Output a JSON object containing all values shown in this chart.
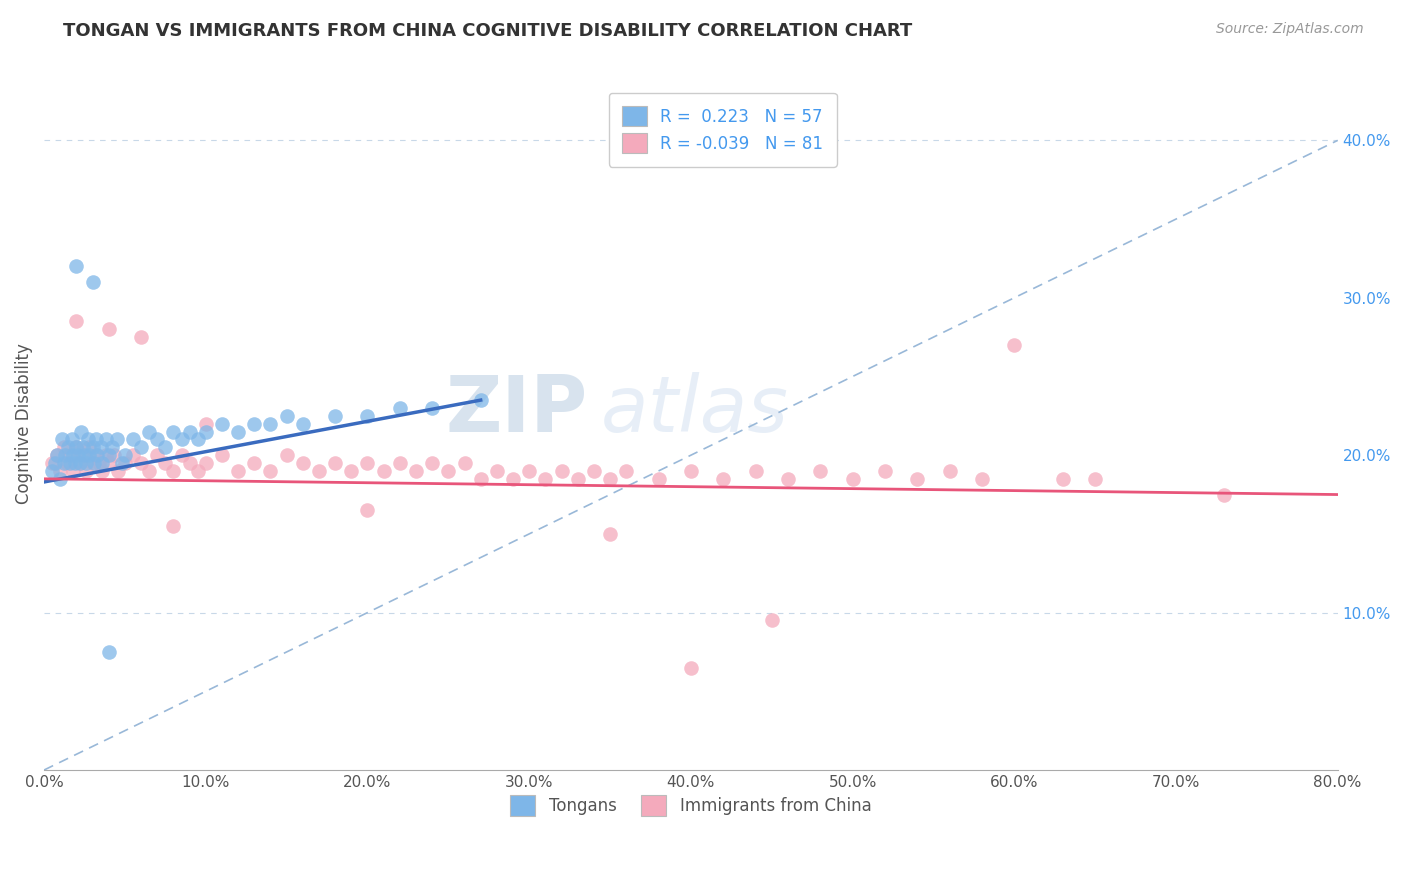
{
  "title": "TONGAN VS IMMIGRANTS FROM CHINA COGNITIVE DISABILITY CORRELATION CHART",
  "source": "Source: ZipAtlas.com",
  "ylabel": "Cognitive Disability",
  "xlim": [
    0.0,
    0.8
  ],
  "ylim": [
    0.0,
    0.44
  ],
  "xticks": [
    0.0,
    0.1,
    0.2,
    0.3,
    0.4,
    0.5,
    0.6,
    0.7,
    0.8
  ],
  "xticklabels": [
    "0.0%",
    "10.0%",
    "20.0%",
    "30.0%",
    "40.0%",
    "50.0%",
    "60.0%",
    "70.0%",
    "80.0%"
  ],
  "yticks_right": [
    0.1,
    0.2,
    0.3,
    0.4
  ],
  "yticklabels_right": [
    "10.0%",
    "20.0%",
    "30.0%",
    "40.0%"
  ],
  "legend_R1": "0.223",
  "legend_N1": "57",
  "legend_R2": "-0.039",
  "legend_N2": "81",
  "color_tongan": "#7EB6E8",
  "color_china": "#F4AABC",
  "color_tongan_line": "#3A6BBF",
  "color_china_line": "#E8557A",
  "color_dashed_line": "#99B8D8",
  "color_gridline": "#C8D8E8",
  "watermark_zip": "ZIP",
  "watermark_atlas": "atlas",
  "background_color": "#FFFFFF",
  "tongan_x": [
    0.005,
    0.007,
    0.008,
    0.01,
    0.011,
    0.012,
    0.013,
    0.015,
    0.016,
    0.017,
    0.018,
    0.019,
    0.02,
    0.021,
    0.022,
    0.023,
    0.024,
    0.025,
    0.026,
    0.027,
    0.028,
    0.03,
    0.031,
    0.032,
    0.033,
    0.035,
    0.036,
    0.038,
    0.04,
    0.042,
    0.045,
    0.048,
    0.05,
    0.055,
    0.06,
    0.065,
    0.07,
    0.075,
    0.08,
    0.085,
    0.09,
    0.095,
    0.1,
    0.11,
    0.12,
    0.13,
    0.14,
    0.15,
    0.16,
    0.18,
    0.2,
    0.22,
    0.24,
    0.27,
    0.02,
    0.03,
    0.04
  ],
  "tongan_y": [
    0.19,
    0.195,
    0.2,
    0.185,
    0.21,
    0.195,
    0.2,
    0.205,
    0.195,
    0.21,
    0.2,
    0.195,
    0.205,
    0.2,
    0.195,
    0.215,
    0.205,
    0.2,
    0.195,
    0.21,
    0.2,
    0.205,
    0.195,
    0.21,
    0.2,
    0.205,
    0.195,
    0.21,
    0.2,
    0.205,
    0.21,
    0.195,
    0.2,
    0.21,
    0.205,
    0.215,
    0.21,
    0.205,
    0.215,
    0.21,
    0.215,
    0.21,
    0.215,
    0.22,
    0.215,
    0.22,
    0.22,
    0.225,
    0.22,
    0.225,
    0.225,
    0.23,
    0.23,
    0.235,
    0.32,
    0.31,
    0.075
  ],
  "china_x": [
    0.005,
    0.008,
    0.01,
    0.012,
    0.014,
    0.016,
    0.018,
    0.02,
    0.022,
    0.024,
    0.026,
    0.028,
    0.03,
    0.032,
    0.034,
    0.036,
    0.038,
    0.04,
    0.043,
    0.046,
    0.05,
    0.055,
    0.06,
    0.065,
    0.07,
    0.075,
    0.08,
    0.085,
    0.09,
    0.095,
    0.1,
    0.11,
    0.12,
    0.13,
    0.14,
    0.15,
    0.16,
    0.17,
    0.18,
    0.19,
    0.2,
    0.21,
    0.22,
    0.23,
    0.24,
    0.25,
    0.26,
    0.27,
    0.28,
    0.29,
    0.3,
    0.31,
    0.32,
    0.33,
    0.34,
    0.35,
    0.36,
    0.38,
    0.4,
    0.42,
    0.44,
    0.46,
    0.48,
    0.5,
    0.52,
    0.54,
    0.56,
    0.58,
    0.6,
    0.63,
    0.65,
    0.02,
    0.04,
    0.06,
    0.08,
    0.1,
    0.2,
    0.35,
    0.45,
    0.4,
    0.73
  ],
  "china_y": [
    0.195,
    0.2,
    0.19,
    0.205,
    0.195,
    0.2,
    0.19,
    0.205,
    0.195,
    0.2,
    0.19,
    0.205,
    0.195,
    0.2,
    0.195,
    0.19,
    0.2,
    0.195,
    0.2,
    0.19,
    0.195,
    0.2,
    0.195,
    0.19,
    0.2,
    0.195,
    0.19,
    0.2,
    0.195,
    0.19,
    0.195,
    0.2,
    0.19,
    0.195,
    0.19,
    0.2,
    0.195,
    0.19,
    0.195,
    0.19,
    0.195,
    0.19,
    0.195,
    0.19,
    0.195,
    0.19,
    0.195,
    0.185,
    0.19,
    0.185,
    0.19,
    0.185,
    0.19,
    0.185,
    0.19,
    0.185,
    0.19,
    0.185,
    0.19,
    0.185,
    0.19,
    0.185,
    0.19,
    0.185,
    0.19,
    0.185,
    0.19,
    0.185,
    0.27,
    0.185,
    0.185,
    0.285,
    0.28,
    0.275,
    0.155,
    0.22,
    0.165,
    0.15,
    0.095,
    0.065,
    0.175
  ],
  "tongan_line_x": [
    0.0,
    0.27
  ],
  "tongan_line_y": [
    0.183,
    0.235
  ],
  "china_line_x": [
    0.0,
    0.8
  ],
  "china_line_y": [
    0.185,
    0.175
  ],
  "diag_line_x": [
    0.0,
    0.8
  ],
  "diag_line_y": [
    0.0,
    0.4
  ]
}
